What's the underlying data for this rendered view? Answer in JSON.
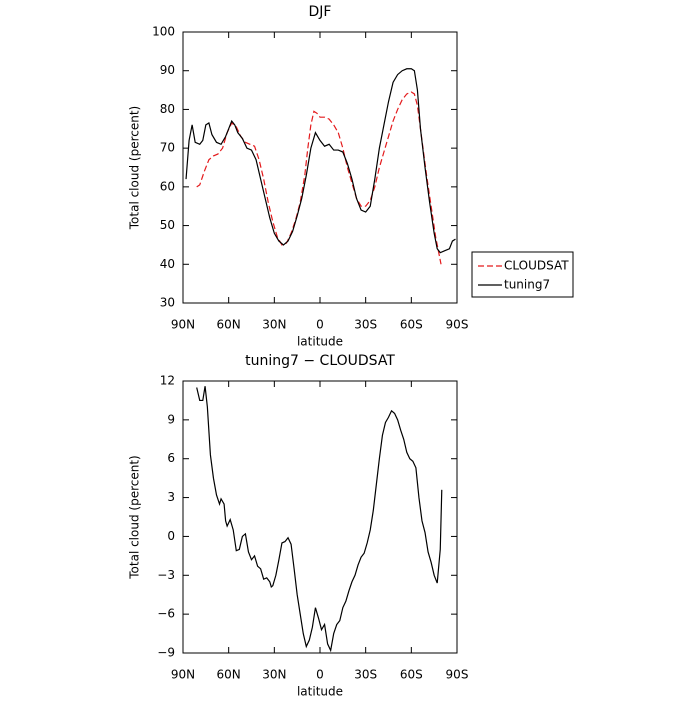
{
  "chart_data": [
    {
      "type": "line",
      "title": "DJF",
      "xlabel": "latitude",
      "ylabel": "Total cloud (percent)",
      "xlim": [
        90,
        -90
      ],
      "xticks": [
        {
          "value": 90,
          "label": "90N"
        },
        {
          "value": 60,
          "label": "60N"
        },
        {
          "value": 30,
          "label": "30N"
        },
        0,
        {
          "value": -30,
          "label": "30S"
        },
        {
          "value": -60,
          "label": "60S"
        },
        {
          "value": -90,
          "label": "90S"
        }
      ],
      "ylim": [
        30,
        100
      ],
      "yticks": [
        30,
        40,
        50,
        60,
        70,
        80,
        90,
        100
      ],
      "legend": "outside right",
      "series": [
        {
          "name": "CLOUDSAT",
          "color": "#e41a1c",
          "style": "dashed",
          "x": [
            81,
            79,
            76,
            73,
            70,
            67,
            64,
            61,
            58,
            55,
            52,
            49,
            46,
            43,
            40,
            37,
            34,
            31,
            28,
            25,
            22,
            19,
            16,
            13,
            10,
            8,
            6,
            4,
            2,
            0,
            -3,
            -6,
            -9,
            -12,
            -15,
            -18,
            -21,
            -24,
            -27,
            -30,
            -33,
            -36,
            -39,
            -42,
            -45,
            -48,
            -51,
            -54,
            -57,
            -60,
            -62,
            -64,
            -67,
            -70,
            -73,
            -76,
            -78,
            -79.5
          ],
          "values": [
            60,
            60.5,
            64,
            67,
            68,
            68.5,
            70,
            74,
            76.5,
            75.5,
            73,
            71.5,
            71,
            70.5,
            67,
            62,
            56,
            51,
            47,
            45,
            45.5,
            48,
            51.5,
            56,
            63,
            70,
            76,
            79.5,
            79,
            78,
            78,
            77.5,
            76,
            74,
            70,
            65,
            61,
            57,
            55,
            55,
            56.5,
            60,
            65,
            69,
            73,
            77,
            80,
            82.5,
            84,
            84.5,
            84,
            81,
            72,
            63,
            55,
            47,
            43,
            40
          ]
        },
        {
          "name": "tuning7",
          "color": "#000000",
          "style": "solid",
          "x": [
            88,
            86,
            84,
            82,
            79,
            77,
            75,
            73,
            71,
            68,
            65,
            62,
            60,
            58,
            56,
            54,
            51,
            48,
            45,
            42,
            39,
            36,
            33,
            30,
            27,
            24,
            21,
            18,
            15,
            12,
            9,
            6,
            3,
            0,
            -3,
            -6,
            -9,
            -12,
            -15,
            -18,
            -21,
            -24,
            -27,
            -30,
            -33,
            -36,
            -39,
            -42,
            -45,
            -48,
            -51,
            -54,
            -57,
            -60,
            -62,
            -64,
            -66,
            -69,
            -72,
            -75,
            -77,
            -79,
            -82,
            -85,
            -87,
            -89
          ],
          "values": [
            62,
            72,
            76,
            71.5,
            71,
            72,
            76,
            76.5,
            73.5,
            71.5,
            71,
            73,
            75,
            77,
            76,
            74,
            72.5,
            70,
            69.5,
            67,
            62,
            57,
            52,
            48,
            46,
            45,
            46,
            48.5,
            52.5,
            57,
            63,
            70,
            74,
            72,
            70.5,
            71,
            69.5,
            69.5,
            69,
            66,
            62,
            57,
            54,
            53.5,
            55,
            62,
            70,
            76,
            82,
            87,
            89,
            90,
            90.5,
            90.5,
            90,
            85,
            75,
            65,
            56,
            48,
            44,
            43,
            43.5,
            44,
            46,
            46.5
          ]
        }
      ]
    },
    {
      "type": "line",
      "title": "tuning7 − CLOUDSAT",
      "xlabel": "latitude",
      "ylabel": "Total cloud (percent)",
      "xlim": [
        90,
        -90
      ],
      "xticks": [
        {
          "value": 90,
          "label": "90N"
        },
        {
          "value": 60,
          "label": "60N"
        },
        {
          "value": 30,
          "label": "30N"
        },
        0,
        {
          "value": -30,
          "label": "30S"
        },
        {
          "value": -60,
          "label": "60S"
        },
        {
          "value": -90,
          "label": "90S"
        }
      ],
      "ylim": [
        -9,
        12
      ],
      "yticks": [
        {
          "value": -9,
          "label": "−9"
        },
        {
          "value": -6,
          "label": "−6"
        },
        {
          "value": -3,
          "label": "−3"
        },
        0,
        3,
        6,
        9,
        12
      ],
      "series": [
        {
          "color": "#000000",
          "style": "solid",
          "x": [
            81,
            79,
            77,
            75.5,
            74,
            72,
            70,
            68,
            66,
            65,
            63,
            62,
            61,
            59,
            57,
            55,
            53,
            51,
            49,
            47,
            45,
            43,
            41,
            39,
            37,
            35,
            33,
            32,
            31,
            29,
            27,
            25,
            23,
            21,
            19,
            17,
            15,
            13,
            11,
            9,
            7,
            5,
            3,
            1,
            -1,
            -3,
            -5,
            -7,
            -9,
            -11,
            -13,
            -15,
            -17,
            -19,
            -21,
            -23,
            -25,
            -27,
            -29,
            -31,
            -33,
            -35,
            -37,
            -39,
            -41,
            -43,
            -45,
            -47,
            -49,
            -51,
            -53,
            -55,
            -57,
            -59,
            -61,
            -63,
            -65,
            -67,
            -69,
            -71,
            -73,
            -75,
            -77,
            -79,
            -80
          ],
          "values": [
            11.5,
            10.5,
            10.5,
            11.6,
            10,
            6.3,
            4.5,
            3.2,
            2.5,
            2.9,
            2.5,
            1.2,
            0.8,
            1.3,
            0.5,
            -1.1,
            -1,
            0,
            0.2,
            -1.2,
            -1.8,
            -1.5,
            -2.3,
            -2.5,
            -3.3,
            -3.2,
            -3.5,
            -3.9,
            -3.8,
            -3,
            -1.8,
            -0.5,
            -0.4,
            -0.1,
            -0.6,
            -2.5,
            -4.5,
            -6,
            -7.5,
            -8.5,
            -8,
            -7,
            -5.5,
            -6.3,
            -7.2,
            -6.8,
            -8.3,
            -8.8,
            -7.5,
            -6.8,
            -6.5,
            -5.5,
            -5,
            -4.2,
            -3.5,
            -3,
            -2.2,
            -1.6,
            -1.3,
            -0.5,
            0.5,
            2,
            4,
            6,
            7.8,
            8.8,
            9.2,
            9.7,
            9.5,
            9,
            8.2,
            7.5,
            6.5,
            6,
            5.8,
            5.3,
            3,
            1.2,
            0.3,
            -1.2,
            -2,
            -3,
            -3.6,
            -1,
            3.6
          ]
        }
      ]
    }
  ]
}
